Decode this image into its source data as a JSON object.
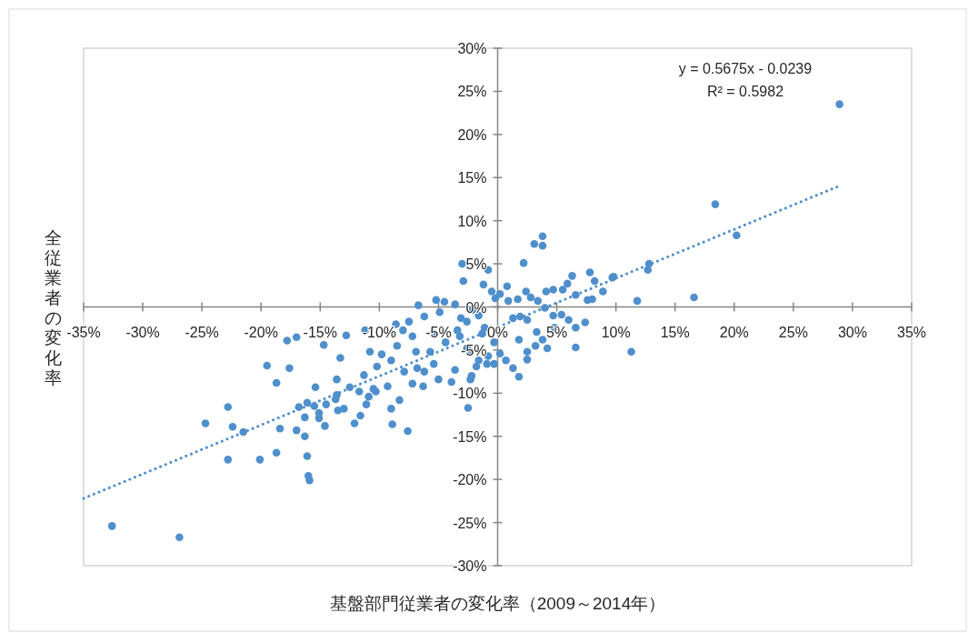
{
  "chart_data": {
    "type": "scatter",
    "xlabel": "基盤部門従業者の変化率（2009～2014年）",
    "ylabel": "全従業者の変化率",
    "annotations": [
      "y = 0.5675x - 0.0239",
      "R² = 0.5982"
    ],
    "xlim": [
      -35,
      35
    ],
    "ylim": [
      -30,
      30
    ],
    "xticks": [
      {
        "value": -35,
        "label": "-35%"
      },
      {
        "value": -30,
        "label": "-30%"
      },
      {
        "value": -25,
        "label": "-25%"
      },
      {
        "value": -20,
        "label": "-20%"
      },
      {
        "value": -15,
        "label": "-15%"
      },
      {
        "value": -10,
        "label": "-10%"
      },
      {
        "value": -5,
        "label": "-5%"
      },
      {
        "value": 0,
        "label": "0%"
      },
      {
        "value": 5,
        "label": "5%"
      },
      {
        "value": 10,
        "label": "10%"
      },
      {
        "value": 15,
        "label": "15%"
      },
      {
        "value": 20,
        "label": "20%"
      },
      {
        "value": 25,
        "label": "25%"
      },
      {
        "value": 30,
        "label": "30%"
      },
      {
        "value": 35,
        "label": "35%"
      }
    ],
    "yticks": [
      {
        "value": -30,
        "label": "-30%"
      },
      {
        "value": -25,
        "label": "-25%"
      },
      {
        "value": -20,
        "label": "-20%"
      },
      {
        "value": -15,
        "label": "-15%"
      },
      {
        "value": -10,
        "label": "-10%"
      },
      {
        "value": -5,
        "label": "-5%"
      },
      {
        "value": 0,
        "label": "0%"
      },
      {
        "value": 5,
        "label": "5%"
      },
      {
        "value": 10,
        "label": "10%"
      },
      {
        "value": 15,
        "label": "15%"
      },
      {
        "value": 20,
        "label": "20%"
      },
      {
        "value": 25,
        "label": "25%"
      },
      {
        "value": 30,
        "label": "30%"
      }
    ],
    "grid": false,
    "marker": "circle",
    "series": [
      {
        "type": "scatter",
        "color": "#4f8fcc",
        "x": [
          -32.6,
          -26.9,
          28.9,
          18.4,
          20.2,
          16.6,
          11.8,
          11.3,
          12.8,
          12.7,
          9.8,
          8.0,
          3.1,
          3.8,
          3.8,
          2.2,
          -0.8,
          -3.0,
          -17.8,
          -17.0,
          -14.7,
          -12.8,
          -13.3,
          -19.5,
          -17.6,
          -18.7,
          -13.6,
          -15.4,
          -12.5,
          -13.6,
          -13.7,
          -16.1,
          -16.8,
          -15.5,
          -14.5,
          -13.5,
          -13.0,
          -22.8,
          -16.3,
          -15.1,
          -15.1,
          -24.7,
          -22.4,
          -21.5,
          -18.4,
          -17.0,
          -14.6,
          -12.1,
          -16.3,
          -18.7,
          -22.8,
          -20.1,
          -16.1,
          -16.0,
          -15.9,
          -11.2,
          -10.8,
          -11.3,
          -10.5,
          -11.7,
          -10.9,
          -10.3,
          -11.1,
          -9.0,
          -8.3,
          -11.6,
          -8.9,
          -7.6,
          -9.3,
          -10.2,
          -9.8,
          -9.0,
          -8.5,
          -8.0,
          -7.5,
          -6.7,
          -8.6,
          -7.9,
          -7.2,
          -6.3,
          -6.2,
          -6.8,
          -6.9,
          -7.2,
          -6.2,
          -5.2,
          -4.5,
          -4.9,
          -5.4,
          -5.7,
          -5.4,
          -5.0,
          -3.9,
          -2.5,
          -3.6,
          -4.4,
          -3.4,
          -3.6,
          -2.6,
          -2.3,
          -1.8,
          -1.3,
          -0.8,
          -0.3,
          -2.3,
          -2.9,
          -1.2,
          -0.5,
          -0.2,
          0.2,
          0.8,
          0.9,
          1.7,
          2.4,
          2.8,
          3.4,
          4.1,
          4.7,
          5.5,
          5.9,
          6.3,
          6.6,
          7.6,
          7.8,
          8.2,
          8.9,
          9.7,
          4.0,
          4.7,
          5.4,
          6.0,
          6.6,
          7.4,
          6.6,
          4.2,
          3.8,
          3.3,
          2.5,
          1.9,
          1.3,
          1.8,
          2.5,
          2.5,
          1.3,
          1.8,
          0.7,
          0.2,
          -0.3,
          -1.1,
          -1.6,
          -2.1,
          -3.1,
          -3.2,
          -2.6,
          -1.6,
          -0.9,
          -2.2,
          3.2,
          4.8
        ],
        "values": [
          -25.4,
          -26.7,
          23.5,
          11.9,
          8.3,
          1.1,
          0.7,
          -5.2,
          5.0,
          4.3,
          3.5,
          0.9,
          7.3,
          8.2,
          7.1,
          5.1,
          4.3,
          5.0,
          -3.9,
          -3.5,
          -4.4,
          -3.3,
          -5.9,
          -6.8,
          -7.1,
          -8.8,
          -8.4,
          -9.3,
          -9.3,
          -10.2,
          -10.7,
          -11.1,
          -11.6,
          -11.5,
          -11.3,
          -12.0,
          -11.8,
          -11.6,
          -12.8,
          -12.3,
          -12.9,
          -13.5,
          -13.9,
          -14.5,
          -14.1,
          -14.3,
          -13.8,
          -13.5,
          -15.0,
          -16.9,
          -17.7,
          -17.7,
          -17.3,
          -19.6,
          -20.1,
          -2.7,
          -5.2,
          -7.9,
          -9.5,
          -9.8,
          -10.4,
          -9.8,
          -11.3,
          -11.8,
          -10.8,
          -12.6,
          -13.6,
          -14.4,
          -9.2,
          -6.9,
          -5.5,
          -6.2,
          -4.5,
          -2.7,
          -1.7,
          0.2,
          -2.0,
          -7.5,
          -8.9,
          -9.2,
          -7.5,
          -7.1,
          -5.2,
          -3.4,
          -1.1,
          0.8,
          0.6,
          -0.6,
          -3.1,
          -5.2,
          -6.6,
          -8.4,
          -8.7,
          -11.7,
          -7.3,
          -4.1,
          -2.7,
          0.3,
          -1.7,
          -5.2,
          -6.9,
          -3.1,
          -5.7,
          -6.6,
          -8.4,
          3.0,
          2.6,
          1.8,
          1.0,
          1.5,
          2.4,
          0.7,
          0.9,
          1.8,
          1.1,
          0.7,
          1.8,
          2.0,
          2.0,
          2.7,
          3.6,
          1.4,
          0.8,
          4.0,
          3.0,
          1.8,
          3.4,
          -0.1,
          -1.0,
          -0.9,
          -1.5,
          -2.4,
          -1.8,
          -4.7,
          -4.8,
          -3.8,
          -2.9,
          -1.5,
          -1.1,
          -1.3,
          -3.8,
          -5.2,
          -6.1,
          -7.1,
          -8.1,
          -6.2,
          -5.4,
          -4.1,
          -2.4,
          -1.0,
          -0.3,
          -1.3,
          -3.4,
          -4.8,
          -6.2,
          -6.6,
          -8.0,
          -4.5,
          -2.4
        ]
      },
      {
        "type": "line",
        "color": "#4f8fcc",
        "line_style": "dotted",
        "marker": "none",
        "x": [
          -35,
          29
        ],
        "values": [
          -22.2,
          14.1
        ]
      }
    ]
  }
}
